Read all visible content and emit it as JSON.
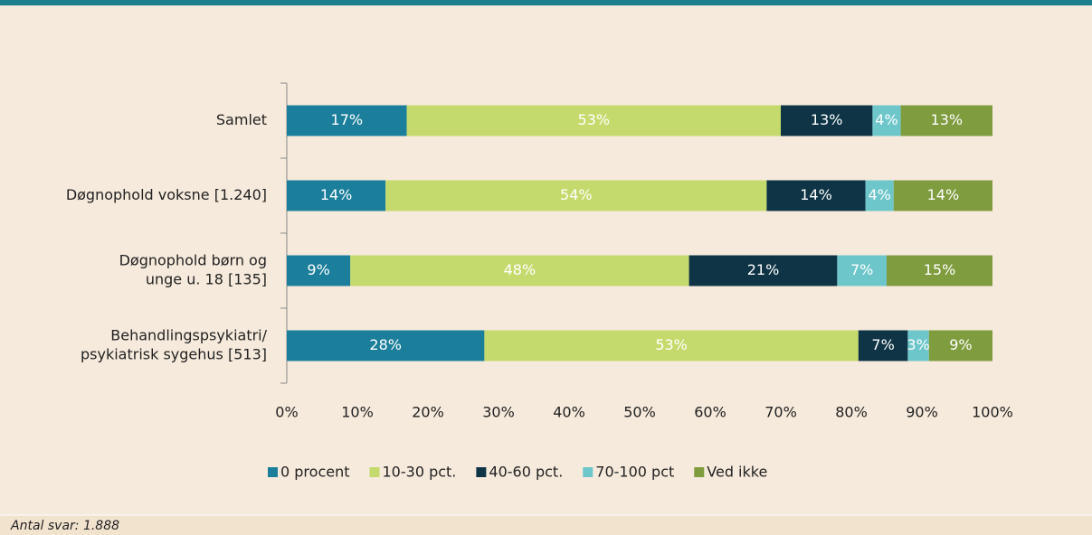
{
  "chart_data": {
    "type": "stacked-bar-horizontal",
    "categories": [
      [
        "Samlet"
      ],
      [
        "Døgnophold voksne [1.240]"
      ],
      [
        "Døgnophold børn og",
        "unge u. 18 [135]"
      ],
      [
        "Behandlingspsykiatri/",
        "psykiatrisk sygehus [513]"
      ]
    ],
    "series": [
      {
        "name": "0 procent",
        "color": "#1b7f9b",
        "values": [
          17,
          14,
          9,
          28
        ],
        "value_labels": [
          "17%",
          "14%",
          "9%",
          "28%"
        ]
      },
      {
        "name": "10-30 pct.",
        "color": "#c5da6c",
        "values": [
          53,
          54,
          48,
          53
        ],
        "value_labels": [
          "53%",
          "54%",
          "48%",
          "53%"
        ]
      },
      {
        "name": "40-60 pct.",
        "color": "#0e3446",
        "values": [
          13,
          14,
          21,
          7
        ],
        "value_labels": [
          "13%",
          "14%",
          "21%",
          "7%"
        ]
      },
      {
        "name": "70-100 pct",
        "color": "#6dc6ca",
        "values": [
          4,
          4,
          7,
          3
        ],
        "value_labels": [
          "4%",
          "4%",
          "7%",
          "3%"
        ]
      },
      {
        "name": "Ved ikke",
        "color": "#7f9c3e",
        "values": [
          13,
          14,
          15,
          9
        ],
        "value_labels": [
          "13%",
          "14%",
          "15%",
          "9%"
        ]
      }
    ],
    "xlim": [
      0,
      100
    ],
    "xticks": [
      {
        "value": 0,
        "label": "0%"
      },
      {
        "value": 10,
        "label": "10%"
      },
      {
        "value": 20,
        "label": "20%"
      },
      {
        "value": 30,
        "label": "30%"
      },
      {
        "value": 40,
        "label": "40%"
      },
      {
        "value": 50,
        "label": "50%"
      },
      {
        "value": 60,
        "label": "60%"
      },
      {
        "value": 70,
        "label": "70%"
      },
      {
        "value": 80,
        "label": "80%"
      },
      {
        "value": 90,
        "label": "90%"
      },
      {
        "value": 100,
        "label": "100%"
      }
    ],
    "legend": "bottom",
    "note": "Antal svar: 1.888"
  }
}
